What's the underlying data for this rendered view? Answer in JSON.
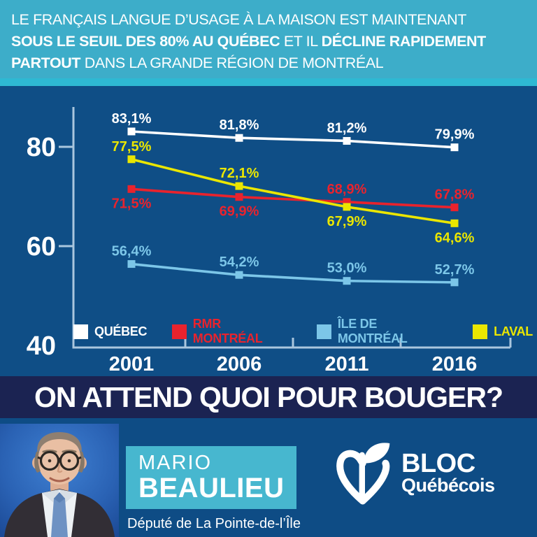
{
  "colors": {
    "header_bg": "#3dadc9",
    "header_accent": "#2eb9d3",
    "chart_bg": "#0f4e86",
    "band_bg": "#1b2352",
    "footer_bg": "#0e4c85",
    "name_box_bg": "#47b7cf",
    "axis": "#aac6de",
    "text_white": "#ffffff",
    "series_quebec": "#ffffff",
    "series_rmr": "#e9232d",
    "series_ile": "#7cc6e8",
    "series_laval": "#eae600"
  },
  "header": {
    "lines": [
      [
        {
          "t": "LE FRANÇAIS LANGUE D’USAGE À LA MAISON EST MAINTENANT",
          "b": false
        }
      ],
      [
        {
          "t": "SOUS LE SEUIL DES 80% AU QUÉBEC",
          "b": true
        },
        {
          "t": " ET IL ",
          "b": false
        },
        {
          "t": "DÉCLINE RAPIDEMENT",
          "b": true
        }
      ],
      [
        {
          "t": "PARTOUT",
          "b": true
        },
        {
          "t": " DANS LA GRANDE RÉGION DE MONTRÉAL",
          "b": false
        }
      ]
    ]
  },
  "chart_data": {
    "type": "line",
    "x": [
      "2001",
      "2006",
      "2011",
      "2016"
    ],
    "yticks": [
      80,
      60,
      40
    ],
    "ylim": [
      40,
      90
    ],
    "grid": false,
    "legend_position": "bottom-inside",
    "series": [
      {
        "name": "QUÉBEC",
        "slug": "quebec",
        "color": "#ffffff",
        "values": [
          83.1,
          81.8,
          81.2,
          79.9
        ],
        "labels": [
          "83,1%",
          "81,8%",
          "81,2%",
          "79,9%"
        ],
        "label_side": [
          "above",
          "above",
          "above",
          "above"
        ]
      },
      {
        "name": "RMR MONTRÉAL",
        "slug": "rmr-montreal",
        "color": "#e9232d",
        "values": [
          71.5,
          69.9,
          68.9,
          67.8
        ],
        "labels": [
          "71,5%",
          "69,9%",
          "68,9%",
          "67,8%"
        ],
        "label_side": [
          "below",
          "below",
          "above",
          "above"
        ]
      },
      {
        "name": "ÎLE DE MONTRÉAL",
        "slug": "ile-de-montreal",
        "color": "#7cc6e8",
        "values": [
          56.4,
          54.2,
          53.0,
          52.7
        ],
        "labels": [
          "56,4%",
          "54,2%",
          "53,0%",
          "52,7%"
        ],
        "label_side": [
          "above",
          "above",
          "above",
          "above"
        ]
      },
      {
        "name": "LAVAL",
        "slug": "laval",
        "color": "#eae600",
        "values": [
          77.5,
          72.1,
          67.9,
          64.6
        ],
        "labels": [
          "77,5%",
          "72,1%",
          "67,9%",
          "64,6%"
        ],
        "label_side": [
          "above",
          "above",
          "below",
          "below"
        ]
      }
    ]
  },
  "band": {
    "text": "ON ATTEND QUOI POUR BOUGER?"
  },
  "footer": {
    "first_name": "MARIO",
    "last_name": "BEAULIEU",
    "caption": "Député de La Pointe-de-l’Île",
    "logo_line1": "BLOC",
    "logo_line2": "Québécois"
  }
}
